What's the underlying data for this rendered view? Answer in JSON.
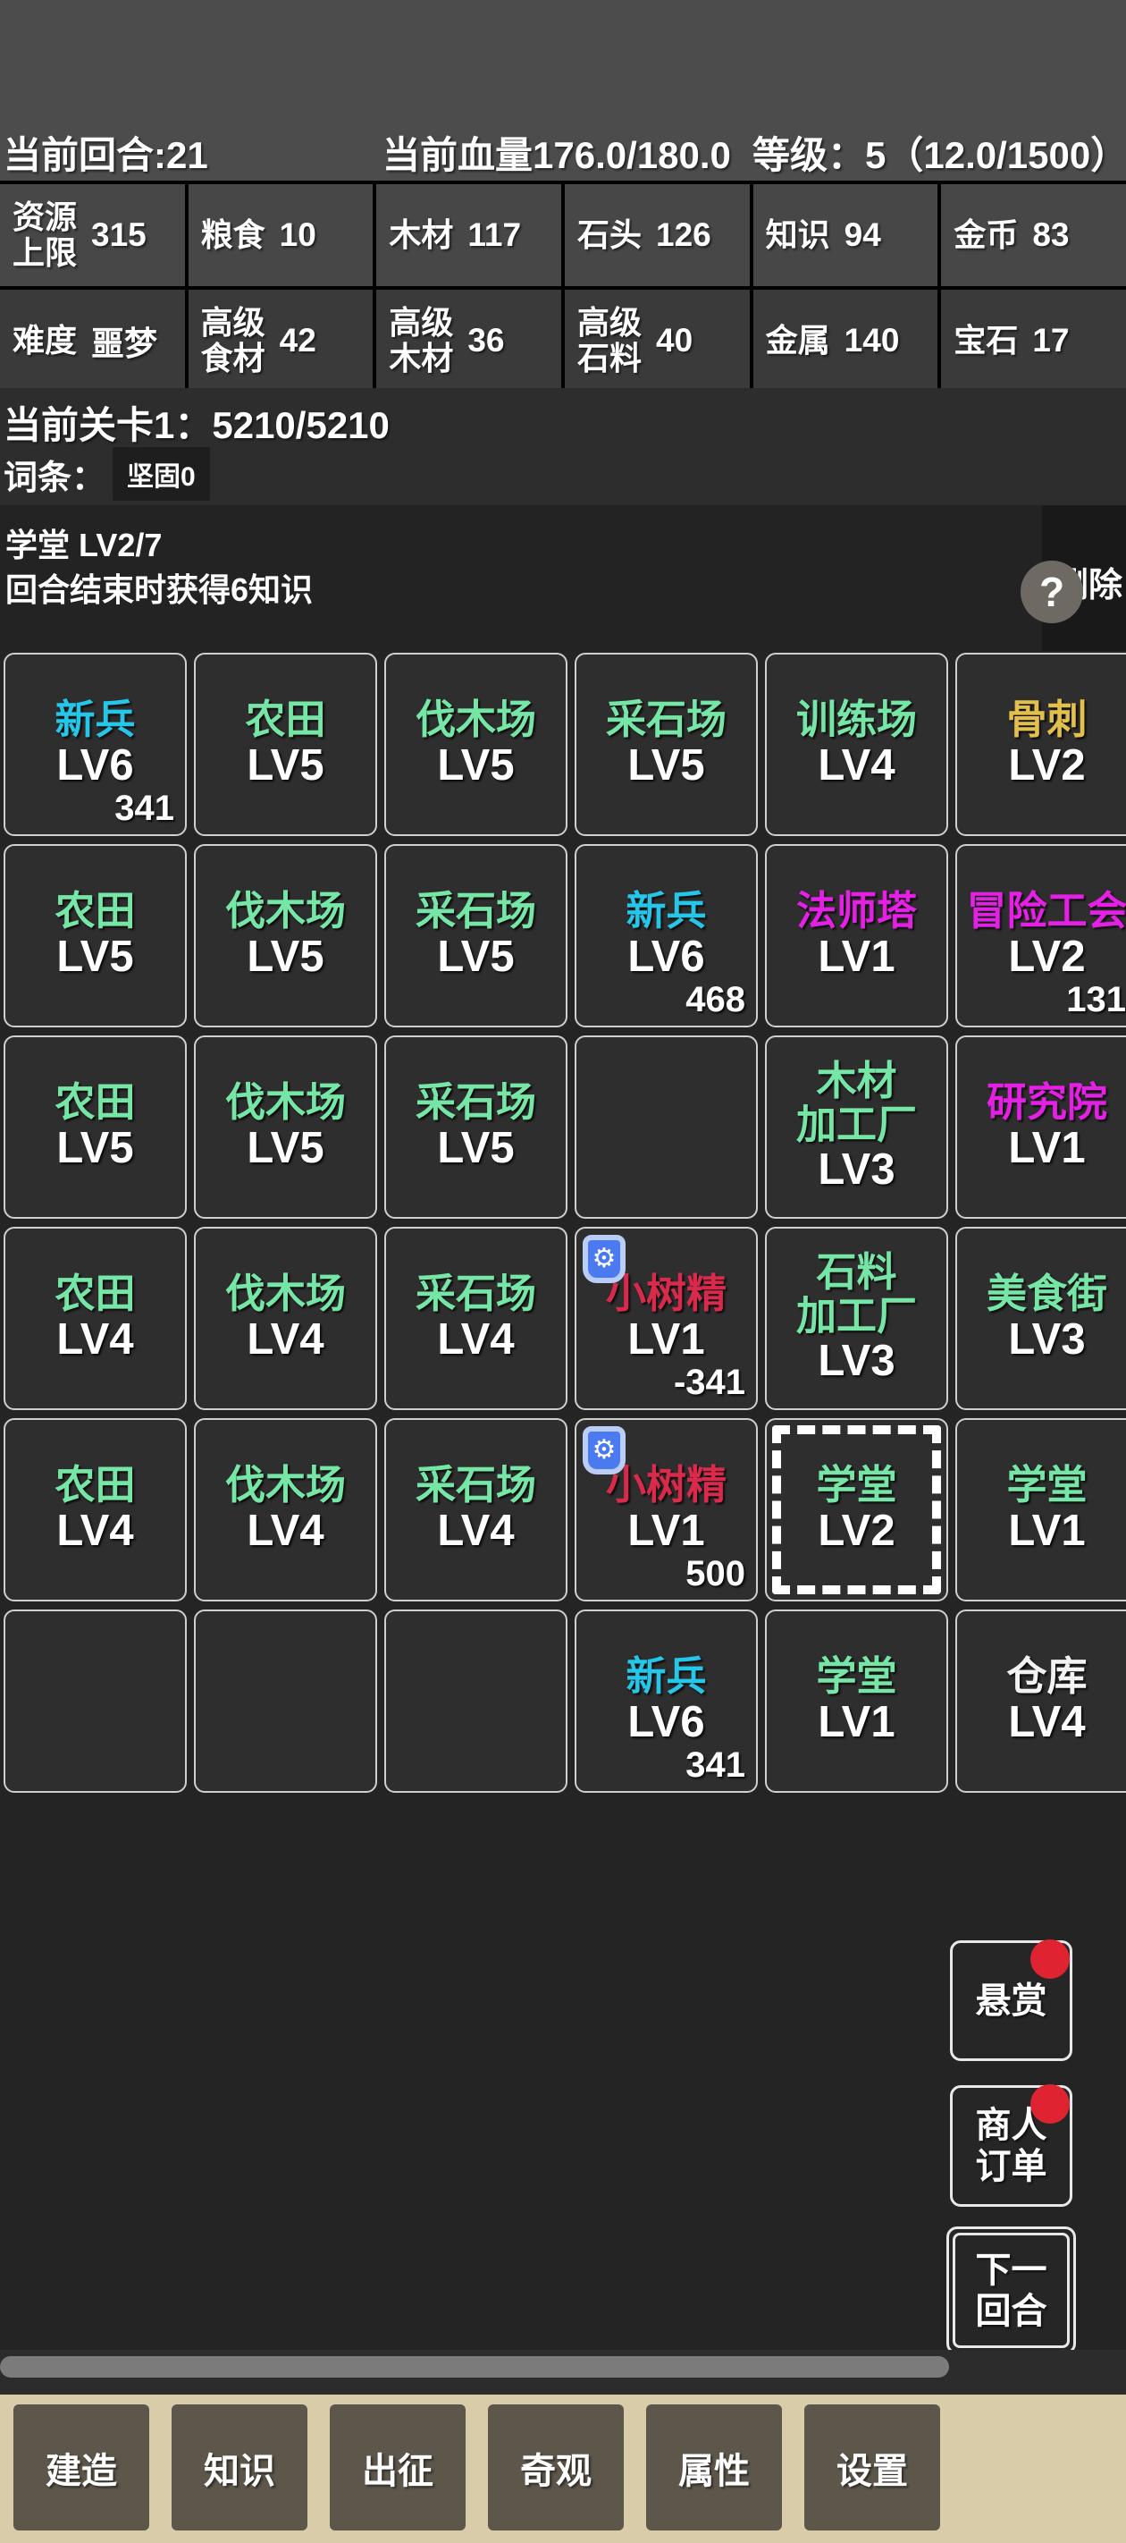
{
  "header": {
    "turn_label": "当前回合:21",
    "hp_label": "当前血量176.0/180.0",
    "level_label": "等级：5（12.0/1500）",
    "resources_row1": [
      {
        "label": "资源\n上限",
        "value": "315"
      },
      {
        "label": "粮食",
        "value": "10"
      },
      {
        "label": "木材",
        "value": "117"
      },
      {
        "label": "石头",
        "value": "126"
      },
      {
        "label": "知识",
        "value": "94"
      },
      {
        "label": "金币",
        "value": "83"
      }
    ],
    "resources_row2": [
      {
        "label": "难度",
        "value": "噩梦"
      },
      {
        "label": "高级\n食材",
        "value": "42"
      },
      {
        "label": "高级\n木材",
        "value": "36"
      },
      {
        "label": "高级\n石料",
        "value": "40"
      },
      {
        "label": "金属",
        "value": "140"
      },
      {
        "label": "宝石",
        "value": "17"
      }
    ]
  },
  "stage": {
    "stage_label": "当前关卡1：5210/5210",
    "entry_label": "词条：",
    "entry_chip": "坚固0"
  },
  "selection_panel": {
    "title": "学堂 LV2/7",
    "desc": "回合结束时获得6知识",
    "delete_label": "删除",
    "help_glyph": "?"
  },
  "grid": {
    "columns": 6,
    "cells": [
      {
        "name": "新兵",
        "color": "cyan",
        "level": "LV6",
        "number": "341"
      },
      {
        "name": "农田",
        "color": "green",
        "level": "LV5"
      },
      {
        "name": "伐木场",
        "color": "green",
        "level": "LV5"
      },
      {
        "name": "采石场",
        "color": "green",
        "level": "LV5"
      },
      {
        "name": "训练场",
        "color": "green",
        "level": "LV4"
      },
      {
        "name": "骨刺",
        "color": "yellow",
        "level": "LV2"
      },
      {
        "name": "农田",
        "color": "green",
        "level": "LV5"
      },
      {
        "name": "伐木场",
        "color": "green",
        "level": "LV5"
      },
      {
        "name": "采石场",
        "color": "green",
        "level": "LV5"
      },
      {
        "name": "新兵",
        "color": "cyan",
        "level": "LV6",
        "number": "468"
      },
      {
        "name": "法师塔",
        "color": "magenta",
        "level": "LV1"
      },
      {
        "name": "冒险工会",
        "color": "magenta",
        "level": "LV2",
        "number": "131"
      },
      {
        "name": "农田",
        "color": "green",
        "level": "LV5"
      },
      {
        "name": "伐木场",
        "color": "green",
        "level": "LV5"
      },
      {
        "name": "采石场",
        "color": "green",
        "level": "LV5"
      },
      {
        "empty": true
      },
      {
        "name": "木材\n加工厂",
        "color": "green",
        "level": "LV3"
      },
      {
        "name": "研究院",
        "color": "magenta",
        "level": "LV1"
      },
      {
        "name": "农田",
        "color": "green",
        "level": "LV4"
      },
      {
        "name": "伐木场",
        "color": "green",
        "level": "LV4"
      },
      {
        "name": "采石场",
        "color": "green",
        "level": "LV4"
      },
      {
        "name": "小树精",
        "color": "red",
        "level": "LV1",
        "number": "-341",
        "badge": true
      },
      {
        "name": "石料\n加工厂",
        "color": "green",
        "level": "LV3"
      },
      {
        "name": "美食街",
        "color": "green",
        "level": "LV3"
      },
      {
        "name": "农田",
        "color": "green",
        "level": "LV4"
      },
      {
        "name": "伐木场",
        "color": "green",
        "level": "LV4"
      },
      {
        "name": "采石场",
        "color": "green",
        "level": "LV4"
      },
      {
        "name": "小树精",
        "color": "red",
        "level": "LV1",
        "number": "500",
        "badge": true
      },
      {
        "name": "学堂",
        "color": "green",
        "level": "LV2",
        "selected": true
      },
      {
        "name": "学堂",
        "color": "green",
        "level": "LV1"
      },
      {
        "empty": true
      },
      {
        "empty": true
      },
      {
        "empty": true
      },
      {
        "name": "新兵",
        "color": "cyan",
        "level": "LV6",
        "number": "341"
      },
      {
        "name": "学堂",
        "color": "green",
        "level": "LV1"
      },
      {
        "name": "仓库",
        "color": "white",
        "level": "LV4"
      }
    ]
  },
  "side_buttons": {
    "bounty_label": "悬赏",
    "merchant_label": "商人\n订单",
    "next_turn_label": "下一\n回合"
  },
  "bottom_bar": {
    "items": [
      {
        "label": "建造",
        "name": "build"
      },
      {
        "label": "知识",
        "name": "knowledge"
      },
      {
        "label": "出征",
        "name": "expedition"
      },
      {
        "label": "奇观",
        "name": "wonder"
      },
      {
        "label": "属性",
        "name": "attributes"
      },
      {
        "label": "设置",
        "name": "settings"
      }
    ]
  },
  "colors": {
    "header_bg": "#4c4c4c",
    "page_bg": "#242424",
    "cell_bg": "#2e2e2e",
    "cell_border": "#cfcfcf",
    "building_green": "#76e6a6",
    "building_cyan": "#26c6e8",
    "building_yellow": "#e2c04b",
    "building_magenta": "#e320e3",
    "building_red": "#da2a4c",
    "notification_red": "#e02330",
    "bottom_bar_bg": "#d9cca8",
    "bottom_btn_bg": "#5d564b",
    "shield_badge_blue": "#4a79f0"
  }
}
